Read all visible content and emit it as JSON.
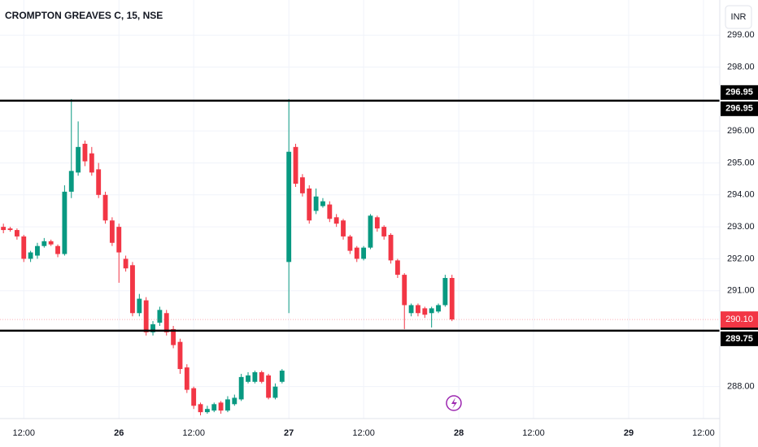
{
  "chart_data": {
    "type": "candlestick",
    "title": "CROMPTON GREAVES C, 15, NSE",
    "currency": "INR",
    "up_color": "#089981",
    "down_color": "#f23645",
    "grid": true,
    "x": [
      0,
      1,
      2,
      3,
      4,
      5,
      6,
      7,
      8,
      9,
      10,
      11,
      12,
      13,
      14,
      15,
      16,
      17,
      18,
      19,
      20,
      21,
      22,
      23,
      24,
      25,
      26,
      27,
      28,
      29,
      30,
      31,
      32,
      33,
      34,
      35,
      36,
      37,
      38,
      39,
      40,
      41,
      42,
      43,
      44,
      45,
      46,
      47,
      48,
      49,
      50,
      51,
      52,
      53,
      54,
      55,
      56,
      57,
      58,
      59,
      60,
      61,
      62,
      63,
      64,
      65,
      66
    ],
    "open": [
      293.0,
      292.95,
      292.9,
      292.7,
      292.0,
      292.1,
      292.4,
      292.55,
      292.4,
      292.15,
      294.1,
      294.7,
      295.6,
      295.3,
      294.8,
      294.0,
      293.2,
      293.0,
      292.0,
      291.8,
      290.3,
      290.7,
      289.7,
      290.0,
      290.3,
      289.8,
      289.4,
      288.6,
      287.95,
      287.45,
      287.2,
      287.25,
      287.5,
      287.25,
      287.45,
      287.6,
      288.15,
      288.15,
      288.45,
      288.35,
      287.65,
      288.15,
      291.9,
      295.5,
      294.55,
      294.2,
      293.5,
      293.65,
      293.7,
      293.3,
      293.2,
      292.7,
      292.35,
      292.0,
      292.35,
      293.3,
      293.0,
      292.75,
      291.95,
      291.5,
      290.3,
      290.55,
      290.45,
      290.3,
      290.35,
      290.55,
      291.4
    ],
    "high": [
      293.1,
      293.0,
      292.95,
      292.75,
      292.25,
      292.5,
      292.65,
      292.6,
      292.45,
      294.3,
      297.0,
      296.3,
      295.7,
      295.5,
      295.0,
      294.1,
      293.3,
      293.1,
      292.1,
      291.9,
      290.9,
      290.8,
      290.05,
      290.5,
      290.4,
      289.9,
      289.5,
      288.7,
      288.0,
      287.5,
      287.4,
      287.5,
      287.55,
      287.7,
      287.75,
      288.4,
      288.45,
      288.5,
      288.5,
      288.4,
      288.1,
      288.55,
      297.0,
      295.6,
      294.65,
      294.3,
      294.2,
      293.9,
      293.8,
      293.4,
      293.25,
      292.75,
      292.4,
      292.4,
      293.4,
      293.35,
      293.05,
      292.8,
      292.0,
      291.55,
      290.6,
      290.6,
      290.5,
      290.5,
      290.6,
      291.5,
      291.5
    ],
    "low": [
      292.8,
      292.85,
      292.6,
      291.9,
      291.9,
      292.0,
      292.35,
      292.4,
      292.05,
      292.1,
      293.9,
      294.6,
      294.9,
      294.6,
      293.9,
      293.1,
      292.4,
      291.25,
      291.6,
      290.2,
      290.2,
      289.6,
      289.6,
      289.9,
      289.6,
      289.2,
      288.4,
      287.8,
      287.3,
      287.1,
      287.15,
      287.2,
      287.15,
      287.2,
      287.4,
      287.55,
      288.1,
      288.1,
      288.1,
      287.6,
      287.6,
      288.1,
      290.3,
      294.25,
      293.95,
      293.1,
      293.4,
      293.6,
      293.15,
      293.0,
      292.6,
      292.15,
      291.9,
      291.95,
      292.3,
      292.85,
      292.6,
      291.85,
      291.4,
      289.8,
      290.2,
      290.2,
      290.15,
      289.85,
      290.3,
      290.5,
      290.05
    ],
    "close": [
      292.9,
      292.9,
      292.7,
      292.0,
      292.2,
      292.4,
      292.55,
      292.45,
      292.15,
      294.1,
      294.75,
      295.5,
      295.05,
      294.7,
      294.0,
      293.2,
      292.5,
      292.2,
      291.7,
      290.3,
      290.75,
      289.7,
      289.95,
      290.4,
      289.7,
      289.3,
      288.55,
      287.9,
      287.4,
      287.2,
      287.3,
      287.45,
      287.25,
      287.6,
      287.65,
      288.3,
      288.35,
      288.45,
      288.15,
      287.65,
      288.0,
      288.5,
      295.35,
      294.35,
      294.05,
      293.2,
      293.95,
      293.8,
      293.25,
      293.1,
      292.7,
      292.25,
      292.0,
      292.35,
      293.35,
      292.95,
      292.7,
      291.95,
      291.5,
      290.55,
      290.55,
      290.3,
      290.25,
      290.45,
      290.55,
      291.4,
      290.1
    ],
    "xlim": [
      -0.5,
      105.4
    ],
    "xticks": [
      {
        "value": 3,
        "label": "12:00"
      },
      {
        "value": 17,
        "label": "26"
      },
      {
        "value": 28,
        "label": "12:00"
      },
      {
        "value": 42,
        "label": "27"
      },
      {
        "value": 53,
        "label": "12:00"
      },
      {
        "value": 67,
        "label": "28"
      },
      {
        "value": 78,
        "label": "12:00"
      },
      {
        "value": 92,
        "label": "29"
      },
      {
        "value": 103,
        "label": "12:00"
      }
    ],
    "ylim": [
      287.0,
      300.1
    ],
    "yticks": [
      {
        "value": 288,
        "label": "288.00"
      },
      {
        "value": 291,
        "label": "291.00"
      },
      {
        "value": 292,
        "label": "292.00"
      },
      {
        "value": 293,
        "label": "293.00"
      },
      {
        "value": 294,
        "label": "294.00"
      },
      {
        "value": 295,
        "label": "295.00"
      },
      {
        "value": 296,
        "label": "296.00"
      },
      {
        "value": 298,
        "label": "298.00"
      },
      {
        "value": 299,
        "label": "299.00"
      }
    ],
    "hlines": [
      {
        "value": 296.95,
        "label": "296.95"
      },
      {
        "value": 289.75,
        "label": "289.75"
      }
    ],
    "hline_color": "#000000",
    "last_price": {
      "value": 290.1,
      "label": "290.10"
    }
  }
}
